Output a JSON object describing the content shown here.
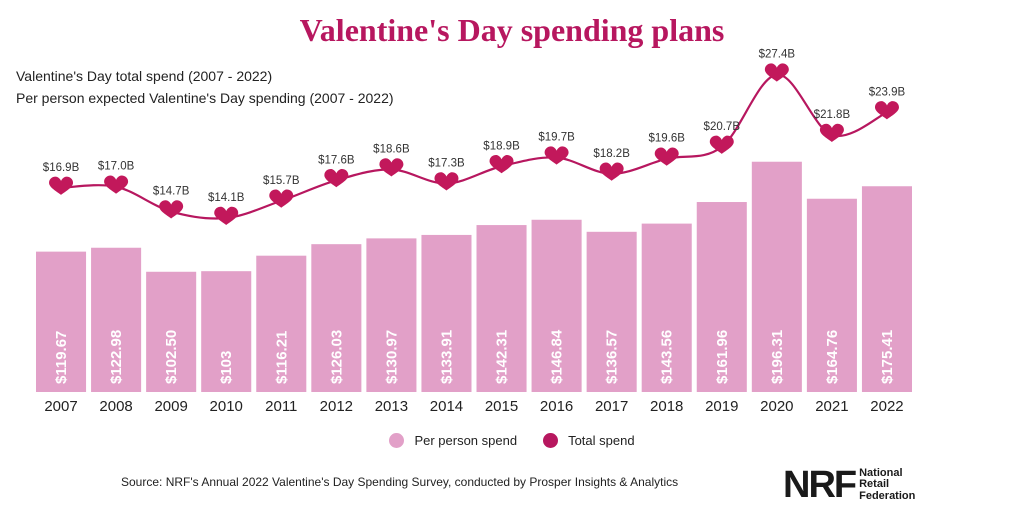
{
  "title": "Valentine's Day spending plans",
  "subtitles": [
    "Valentine's Day total spend (2007 - 2022)",
    "Per person expected Valentine's Day spending (2007 - 2022)"
  ],
  "legend": {
    "per_person": "Per person spend",
    "total": "Total spend"
  },
  "source": "Source: NRF's Annual 2022 Valentine's Day Spending Survey, conducted by Prosper Insights & Analytics",
  "logo": {
    "mark": "NRF",
    "lines": [
      "National",
      "Retail",
      "Federation"
    ]
  },
  "colors": {
    "title": "#b7175f",
    "bar": "#e2a0c8",
    "line": "#b7175f",
    "heart": "#c2185b"
  },
  "chart_data": {
    "type": "bar",
    "categories": [
      "2007",
      "2008",
      "2009",
      "2010",
      "2011",
      "2012",
      "2013",
      "2014",
      "2015",
      "2016",
      "2017",
      "2018",
      "2019",
      "2020",
      "2021",
      "2022"
    ],
    "series": [
      {
        "name": "Per person spend",
        "type": "bar",
        "values": [
          119.67,
          122.98,
          102.5,
          103,
          116.21,
          126.03,
          130.97,
          133.91,
          142.31,
          146.84,
          136.57,
          143.56,
          161.96,
          196.31,
          164.76,
          175.41
        ],
        "labels": [
          "$119.67",
          "$122.98",
          "$102.50",
          "$103",
          "$116.21",
          "$126.03",
          "$130.97",
          "$133.91",
          "$142.31",
          "$146.84",
          "$136.57",
          "$143.56",
          "$161.96",
          "$196.31",
          "$164.76",
          "$175.41"
        ]
      },
      {
        "name": "Total spend",
        "type": "line",
        "values": [
          16.9,
          17.0,
          14.7,
          14.1,
          15.7,
          17.6,
          18.6,
          17.3,
          18.9,
          19.7,
          18.2,
          19.6,
          20.7,
          27.4,
          21.8,
          23.9
        ],
        "labels": [
          "$16.9B",
          "$17.0B",
          "$14.7B",
          "$14.1B",
          "$15.7B",
          "$17.6B",
          "$18.6B",
          "$17.3B",
          "$18.9B",
          "$19.7B",
          "$18.2B",
          "$19.6B",
          "$20.7B",
          "$27.4B",
          "$21.8B",
          "$23.9B"
        ]
      }
    ],
    "marker": "heart",
    "grid": false,
    "legend_position": "bottom-center"
  }
}
